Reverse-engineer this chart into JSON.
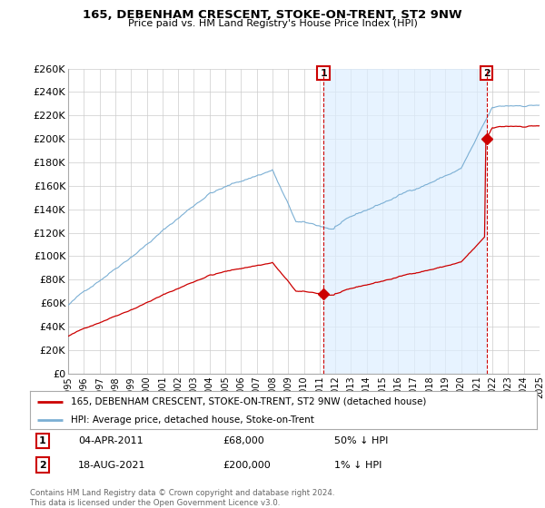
{
  "title": "165, DEBENHAM CRESCENT, STOKE-ON-TRENT, ST2 9NW",
  "subtitle": "Price paid vs. HM Land Registry's House Price Index (HPI)",
  "ylim": [
    0,
    260000
  ],
  "yticks": [
    0,
    20000,
    40000,
    60000,
    80000,
    100000,
    120000,
    140000,
    160000,
    180000,
    200000,
    220000,
    240000,
    260000
  ],
  "ytick_labels": [
    "£0",
    "£20K",
    "£40K",
    "£60K",
    "£80K",
    "£100K",
    "£120K",
    "£140K",
    "£160K",
    "£180K",
    "£200K",
    "£220K",
    "£240K",
    "£260K"
  ],
  "hpi_color": "#7bafd4",
  "property_color": "#cc0000",
  "vline_color": "#cc0000",
  "shade_color": "#ddeeff",
  "background_color": "#ffffff",
  "grid_color": "#cccccc",
  "sale1_year": 2011.25,
  "sale1_price": 68000,
  "sale1_label": "1",
  "sale1_date": "04-APR-2011",
  "sale1_amount": "£68,000",
  "sale1_hpi": "50% ↓ HPI",
  "sale2_year": 2021.62,
  "sale2_price": 200000,
  "sale2_label": "2",
  "sale2_date": "18-AUG-2021",
  "sale2_amount": "£200,000",
  "sale2_hpi": "1% ↓ HPI",
  "legend_property": "165, DEBENHAM CRESCENT, STOKE-ON-TRENT, ST2 9NW (detached house)",
  "legend_hpi": "HPI: Average price, detached house, Stoke-on-Trent",
  "footnote": "Contains HM Land Registry data © Crown copyright and database right 2024.\nThis data is licensed under the Open Government Licence v3.0.",
  "xlim": [
    1995,
    2025
  ],
  "xticks": [
    1995,
    1996,
    1997,
    1998,
    1999,
    2000,
    2001,
    2002,
    2003,
    2004,
    2005,
    2006,
    2007,
    2008,
    2009,
    2010,
    2011,
    2012,
    2013,
    2014,
    2015,
    2016,
    2017,
    2018,
    2019,
    2020,
    2021,
    2022,
    2023,
    2024,
    2025
  ]
}
